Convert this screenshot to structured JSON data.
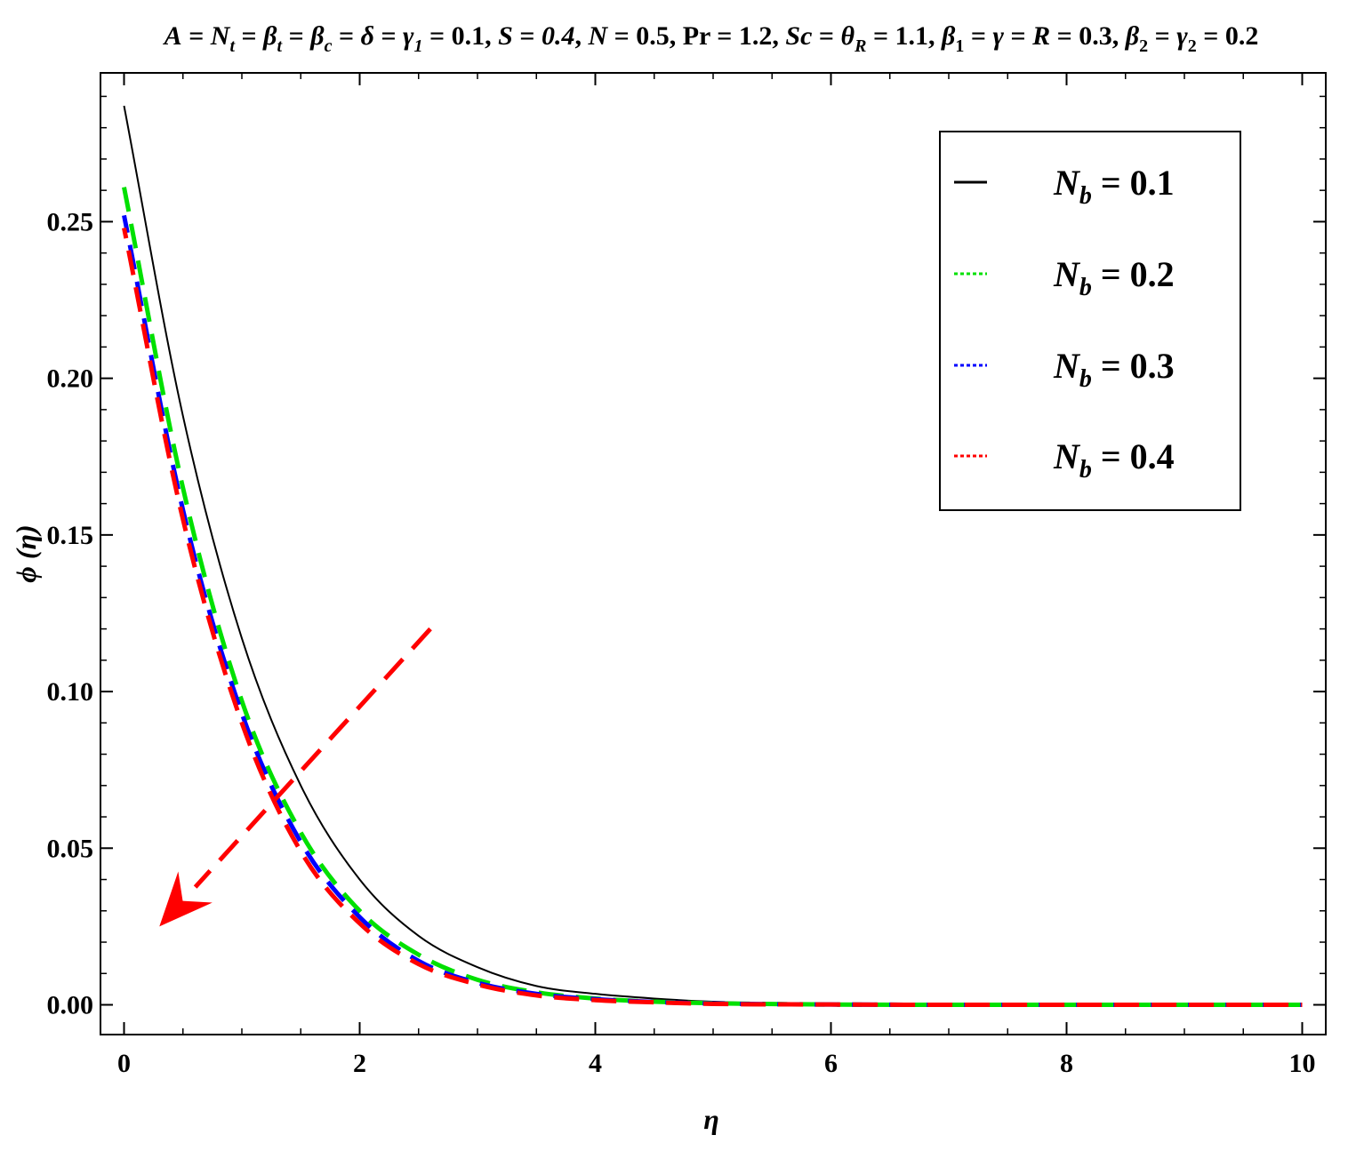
{
  "chart_data": {
    "type": "line",
    "title": "A = Nt  = βt = βc = δ = γ1 =  0.1, S = 0.4, N = 0.5, Pr = 1.2, Sc = θR = 1.1, β1 = γ = R = 0.3, β2 = γ2 = 0.2",
    "xlabel": "η",
    "ylabel": "ϕ (η)",
    "xlim": [
      -0.2,
      10.2
    ],
    "ylim": [
      -0.0095,
      0.2975
    ],
    "x_ticks": [
      0,
      2,
      4,
      6,
      8,
      10
    ],
    "y_ticks": [
      0.0,
      0.05,
      0.1,
      0.15,
      0.2,
      0.25
    ],
    "x_tick_labels": [
      "0",
      "2",
      "4",
      "6",
      "8",
      "10"
    ],
    "y_tick_labels": [
      "0.00",
      "0.05",
      "0.10",
      "0.15",
      "0.20",
      "0.25"
    ],
    "grid": false,
    "legend_position": "top-right",
    "x": [
      0,
      0.5,
      1,
      1.5,
      2,
      2.5,
      3,
      3.5,
      4,
      4.5,
      5,
      6,
      7,
      8,
      9,
      10
    ],
    "series": [
      {
        "name": "Nb = 0.1",
        "color": "#000000",
        "style": "solid",
        "values": [
          0.287,
          0.188,
          0.117,
          0.07,
          0.04,
          0.022,
          0.012,
          0.006,
          0.0035,
          0.002,
          0.001,
          0.0002,
          0.0001,
          0.0,
          0.0,
          0.0
        ]
      },
      {
        "name": "Nb = 0.2",
        "color": "#00e000",
        "style": "dashed",
        "values": [
          0.261,
          0.165,
          0.097,
          0.055,
          0.03,
          0.016,
          0.008,
          0.004,
          0.002,
          0.001,
          0.0005,
          0.0001,
          0.0,
          0.0,
          0.0,
          0.0
        ]
      },
      {
        "name": "Nb = 0.3",
        "color": "#0000ff",
        "style": "dashed",
        "values": [
          0.252,
          0.158,
          0.093,
          0.052,
          0.028,
          0.014,
          0.007,
          0.0035,
          0.0018,
          0.0009,
          0.0004,
          0.0001,
          0.0,
          0.0,
          0.0,
          0.0
        ]
      },
      {
        "name": "Nb = 0.4",
        "color": "#ff0000",
        "style": "dashed",
        "values": [
          0.248,
          0.155,
          0.09,
          0.049,
          0.026,
          0.013,
          0.0065,
          0.003,
          0.0015,
          0.0008,
          0.0003,
          0.0001,
          0.0,
          0.0,
          0.0,
          0.0
        ]
      }
    ],
    "annotations": [
      {
        "type": "arrow",
        "color": "#ff0000",
        "style": "dashed",
        "from": [
          2.6,
          0.12
        ],
        "to": [
          0.3,
          0.025
        ]
      }
    ]
  },
  "legend": {
    "items": [
      {
        "sub": "b",
        "value": "= 0.1",
        "color": "#000000",
        "style": "solid"
      },
      {
        "sub": "b",
        "value": "= 0.2",
        "color": "#00e000",
        "style": "dotted"
      },
      {
        "sub": "b",
        "value": "= 0.3",
        "color": "#0000ff",
        "style": "dotted"
      },
      {
        "sub": "b",
        "value": "= 0.4",
        "color": "#ff0000",
        "style": "dotted"
      }
    ]
  },
  "colors": {
    "frame": "#000000",
    "background": "#ffffff",
    "arrow": "#ff0000"
  }
}
